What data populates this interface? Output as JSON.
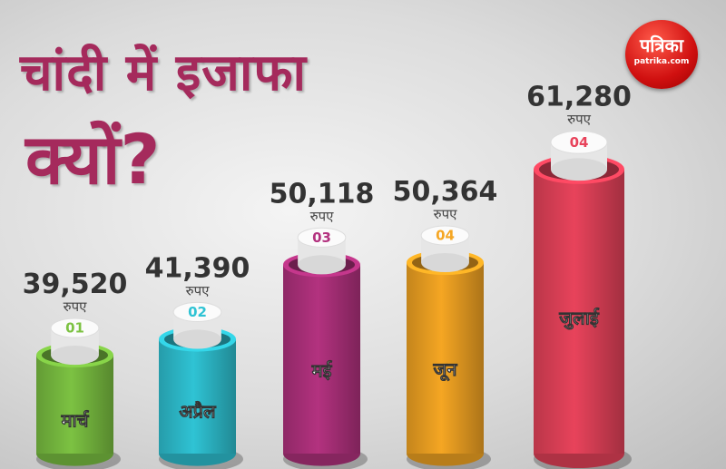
{
  "title": {
    "line1": "चांदी में इजाफा",
    "line2": "क्यों?"
  },
  "logo": {
    "name": "पत्रिका",
    "site": "patrika.com"
  },
  "chart_data": {
    "type": "bar",
    "unit_label": "रुपए",
    "categories": [
      "मार्च",
      "अप्रैल",
      "मई",
      "जून",
      "जुलाई"
    ],
    "badges": [
      "01",
      "02",
      "03",
      "04",
      "04"
    ],
    "values": [
      39520,
      41390,
      50118,
      50364,
      61280
    ],
    "value_labels": [
      "39,520",
      "41,390",
      "50,118",
      "50,364",
      "61,280"
    ],
    "colors": [
      "#7cc242",
      "#2fc3d4",
      "#b3327f",
      "#f5a623",
      "#e8435b"
    ],
    "ylim": [
      28000,
      62000
    ]
  }
}
